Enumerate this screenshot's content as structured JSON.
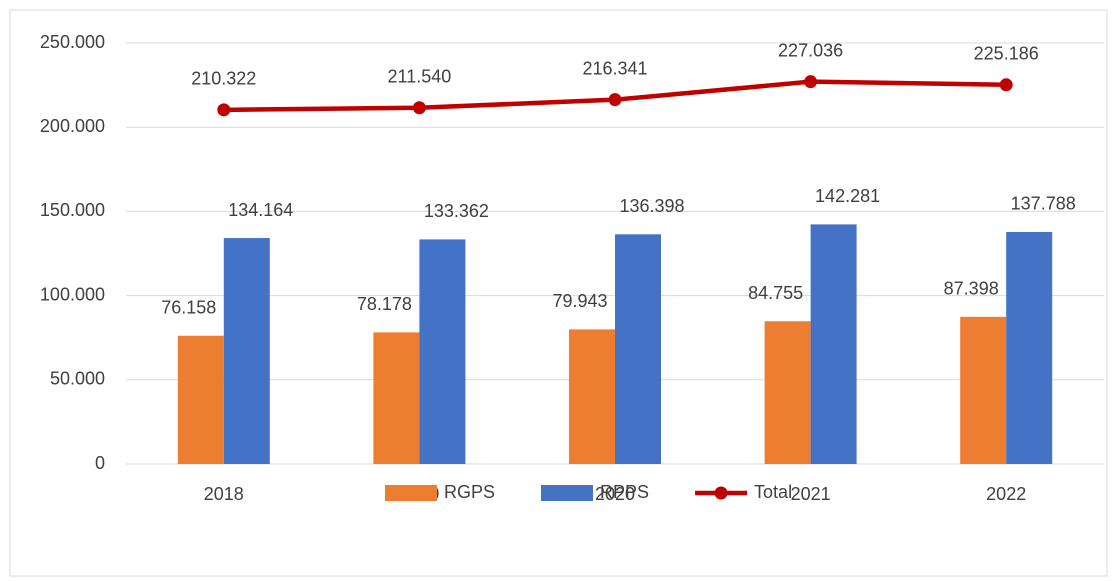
{
  "chart_data": {
    "type": "bar",
    "categories": [
      "2018",
      "2019",
      "2020",
      "2021",
      "2022"
    ],
    "series": [
      {
        "name": "RGPS",
        "color": "#ed7d31",
        "type": "bar",
        "values": [
          76158,
          78178,
          79943,
          84755,
          87398
        ],
        "value_labels": [
          "76.158",
          "78.178",
          "79.943",
          "84.755",
          "87.398"
        ]
      },
      {
        "name": "RPPS",
        "color": "#4472c4",
        "type": "bar",
        "values": [
          134164,
          133362,
          136398,
          142281,
          137788
        ],
        "value_labels": [
          "134.164",
          "133.362",
          "136.398",
          "142.281",
          "137.788"
        ]
      },
      {
        "name": "Total",
        "color": "#c00000",
        "type": "line",
        "values": [
          210322,
          211540,
          216341,
          227036,
          225186
        ],
        "value_labels": [
          "210.322",
          "211.540",
          "216.341",
          "227.036",
          "225.186"
        ]
      }
    ],
    "ylim": [
      0,
      250000
    ],
    "yticks": [
      0,
      {
        "value": 50000,
        "label": "50.000"
      },
      {
        "value": 100000,
        "label": "100.000"
      },
      {
        "value": 150000,
        "label": "150.000"
      },
      {
        "value": 200000,
        "label": "200.000"
      },
      {
        "value": 250000,
        "label": "250.000"
      }
    ],
    "grid": true,
    "legend": "bottom"
  }
}
